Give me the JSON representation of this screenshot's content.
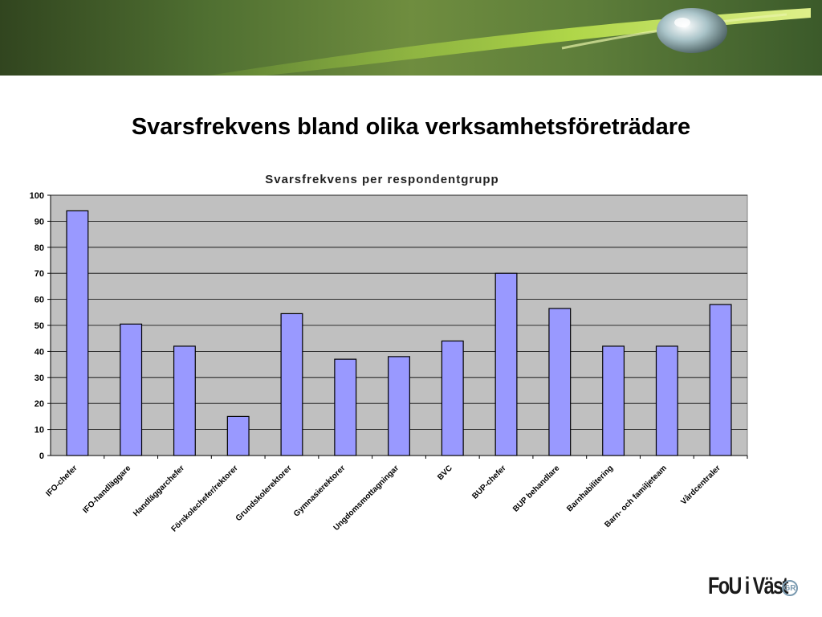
{
  "slide": {
    "title": "Svarsfrekvens bland olika verksamhetsföreträdare",
    "logo_text": "FoU i Väst",
    "logo_badge": "GR"
  },
  "colors": {
    "plot_bg": "#c0c0c0",
    "bar_fill": "#9999ff",
    "bar_stroke": "#000000",
    "grid": "#000000"
  },
  "chart_data": {
    "type": "bar",
    "title": "Svarsfrekvens per respondentgrupp",
    "xlabel": "",
    "ylabel": "",
    "ylim": [
      0,
      100
    ],
    "yticks": [
      0,
      10,
      20,
      30,
      40,
      50,
      60,
      70,
      80,
      90,
      100
    ],
    "grid": true,
    "legend": "none",
    "categories": [
      "IFO-chefer",
      "IFO-handläggare",
      "Handläggarchefer",
      "Förskolechefer/rektorer",
      "Grundskolerektorer",
      "Gymnasierektorer",
      "Ungdomsmottagningar",
      "BVC",
      "BUP-chefer",
      "BUP behandlare",
      "Barnhabilitering",
      "Barn- och familjeteam",
      "Vårdcentraler"
    ],
    "values": [
      94,
      50.5,
      42,
      15,
      54.5,
      37,
      38,
      44,
      70,
      56.5,
      42,
      42,
      58
    ]
  }
}
